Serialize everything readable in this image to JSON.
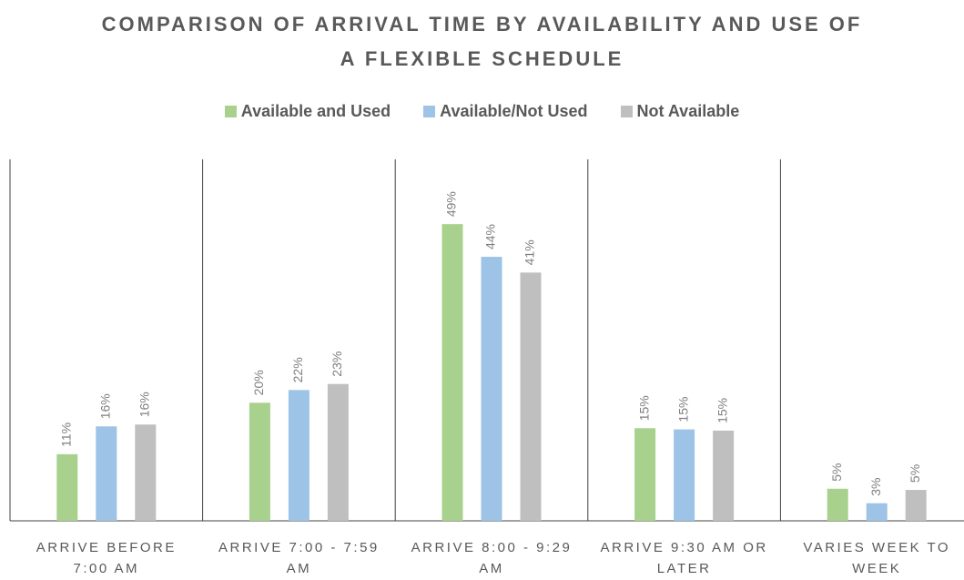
{
  "chart_data": {
    "type": "bar",
    "title": "COMPARISON OF ARRIVAL TIME BY AVAILABILITY AND USE OF A FLEXIBLE SCHEDULE",
    "categories": [
      "ARRIVE BEFORE 7:00 AM",
      "ARRIVE 7:00 - 7:59 AM",
      "ARRIVE 8:00 - 9:29 AM",
      "ARRIVE 9:30 AM OR LATER",
      "VARIES WEEK TO WEEK"
    ],
    "series": [
      {
        "name": "Available and Used",
        "color": "#a9d18e",
        "values": [
          11.0,
          19.5,
          49.0,
          15.3,
          5.3
        ],
        "value_labels": [
          "11%",
          "20%",
          "49%",
          "15%",
          "5%"
        ]
      },
      {
        "name": "Available/Not Used",
        "color": "#9dc3e6",
        "values": [
          15.6,
          21.6,
          43.6,
          15.1,
          2.9
        ],
        "value_labels": [
          "16%",
          "22%",
          "44%",
          "15%",
          "3%"
        ]
      },
      {
        "name": "Not Available",
        "color": "#bfbfbf",
        "values": [
          15.9,
          22.6,
          41.0,
          14.9,
          5.1
        ],
        "value_labels": [
          "16%",
          "23%",
          "41%",
          "15%",
          "5%"
        ]
      }
    ],
    "ylim": [
      0,
      50
    ],
    "legend": "top"
  }
}
